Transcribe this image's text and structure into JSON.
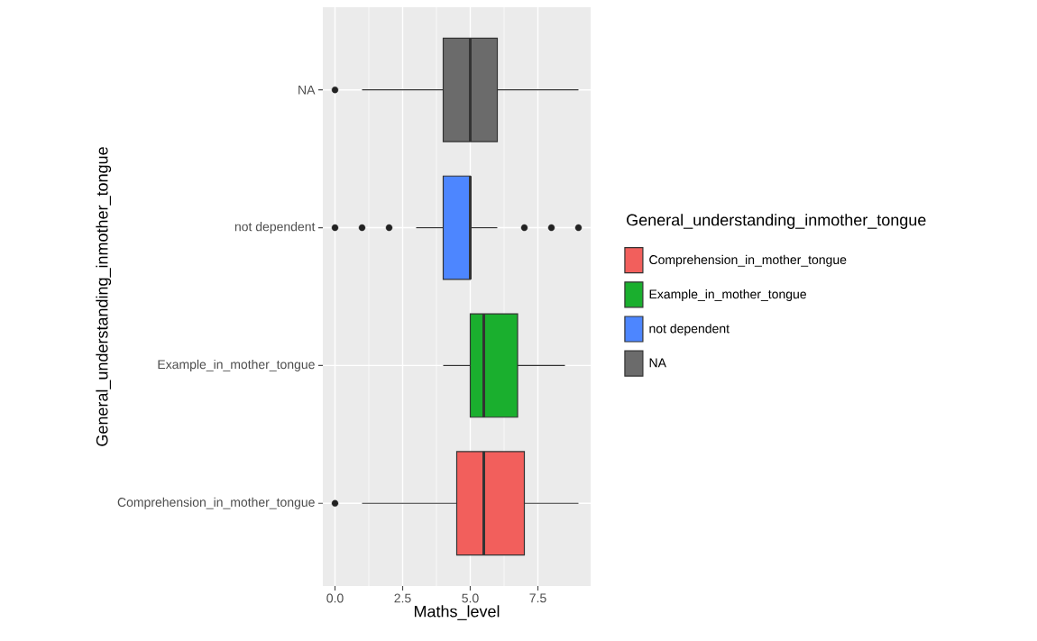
{
  "chart_data": {
    "type": "box",
    "orientation": "horizontal",
    "xlabel": "Maths_level",
    "ylabel": "General_understanding_inmother_tongue",
    "legend_title": "General_understanding_inmother_tongue",
    "legend": "right",
    "grid": true,
    "categories": [
      "NA",
      "not dependent",
      "Example_in_mother_tongue",
      "Comprehension_in_mother_tongue"
    ],
    "series": [
      {
        "name": "Comprehension_in_mother_tongue",
        "color": "#F25F5C",
        "boxes": [
          null,
          null,
          null,
          {
            "low": 1,
            "q1": 4.5,
            "median": 5.5,
            "q3": 7,
            "high": 9,
            "outliers": [
              0
            ]
          }
        ]
      },
      {
        "name": "Example_in_mother_tongue",
        "color": "#1AAF2E",
        "boxes": [
          null,
          null,
          {
            "low": 4,
            "q1": 5,
            "median": 5.5,
            "q3": 6.75,
            "high": 8.5
          },
          null
        ]
      },
      {
        "name": "not dependent",
        "color": "#4D86FF",
        "boxes": [
          null,
          {
            "low": 3,
            "q1": 4,
            "median": 5,
            "q3": 5,
            "high": 6,
            "outliers": [
              0,
              1,
              2,
              7,
              8,
              9
            ]
          },
          null,
          null
        ]
      },
      {
        "name": "NA",
        "color": "#6B6B6B",
        "boxes": [
          {
            "low": 1,
            "q1": 4,
            "median": 5,
            "q3": 6,
            "high": 9,
            "outliers": [
              0
            ]
          },
          null,
          null,
          null
        ]
      }
    ],
    "xlim": [
      -0.45,
      9.45
    ],
    "xticks": [
      {
        "value": 0,
        "label": "0.0"
      },
      2.5,
      {
        "value": 5,
        "label": "5.0"
      },
      7.5
    ]
  }
}
